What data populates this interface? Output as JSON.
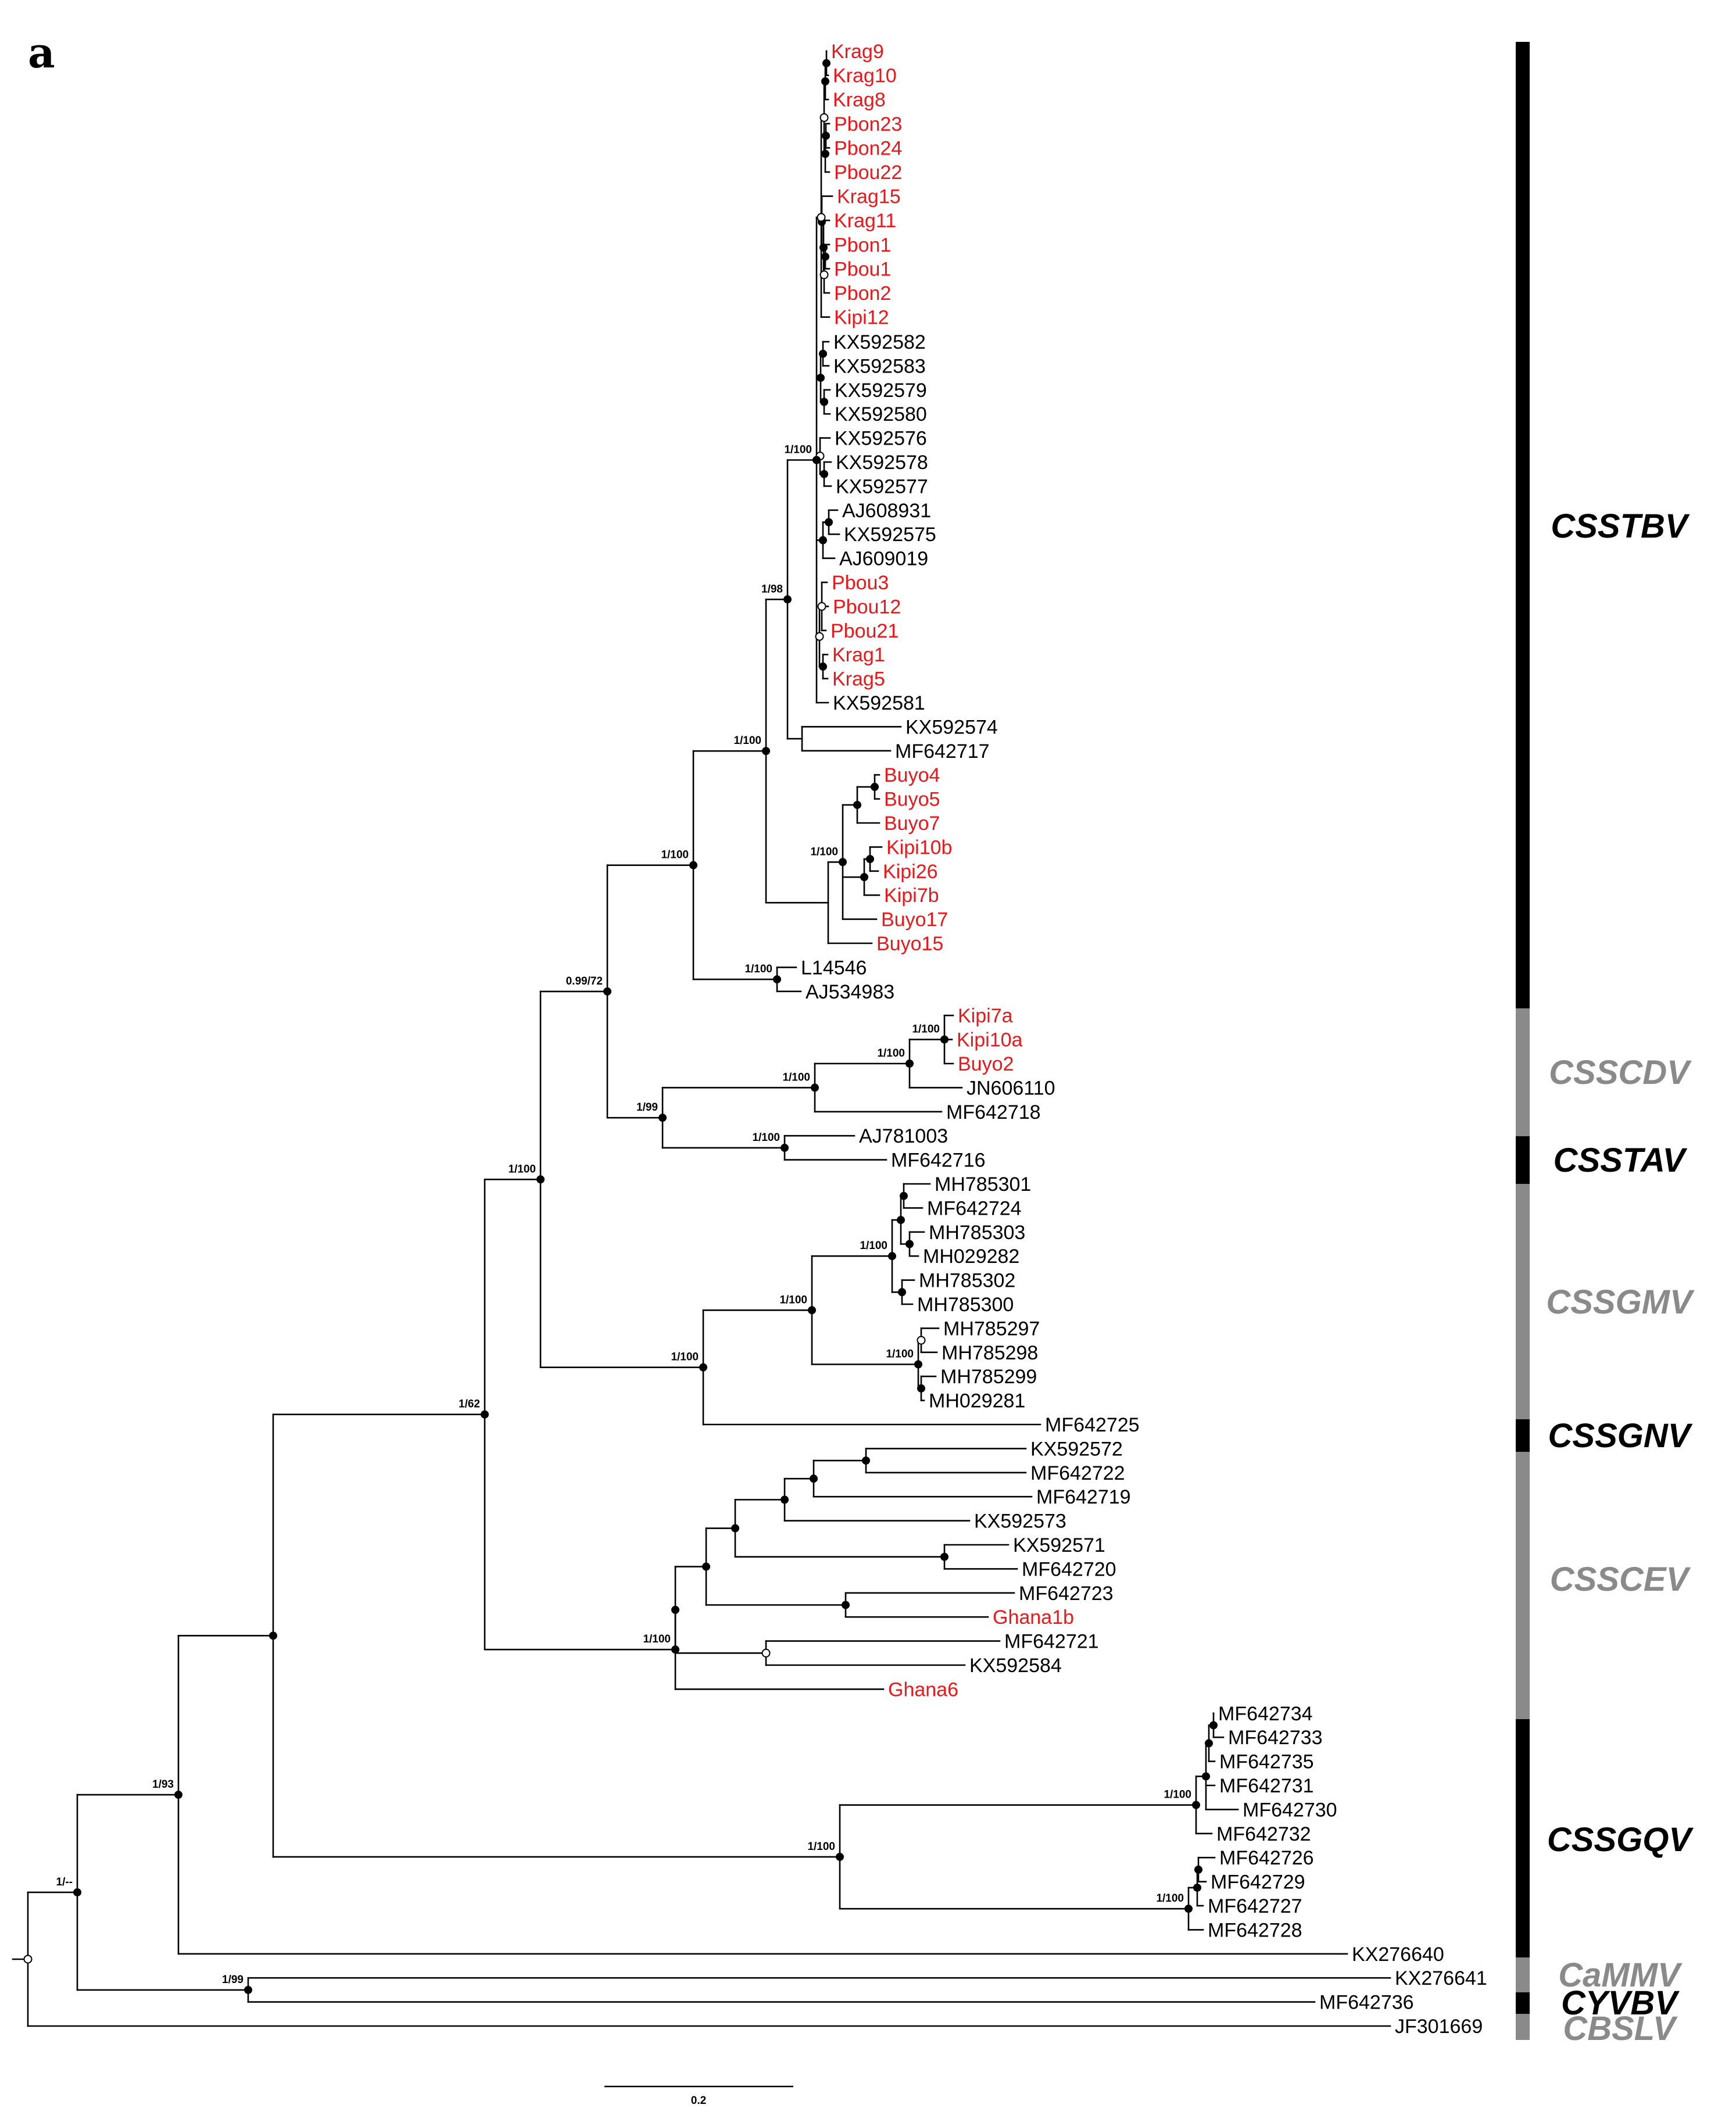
{
  "panel_label": "a",
  "colors": {
    "field_isolate": "#e8191c",
    "reference": "#000000",
    "clade_dark": "#000000",
    "clade_light": "#8a8a8a",
    "node_open": "#ffffff"
  },
  "scale_bar": {
    "label": "0.2"
  },
  "tree": {
    "rotation": "horizontal, root at left",
    "tips": [
      {
        "name": "Krag9",
        "highlight": true
      },
      {
        "name": "Krag10",
        "highlight": true
      },
      {
        "name": "Krag8",
        "highlight": true
      },
      {
        "name": "Pbon23",
        "highlight": true
      },
      {
        "name": "Pbon24",
        "highlight": true
      },
      {
        "name": "Pbou22",
        "highlight": true
      },
      {
        "name": "Krag15",
        "highlight": true
      },
      {
        "name": "Krag11",
        "highlight": true
      },
      {
        "name": "Pbon1",
        "highlight": true
      },
      {
        "name": "Pbou1",
        "highlight": true
      },
      {
        "name": "Pbon2",
        "highlight": true
      },
      {
        "name": "Kipi12",
        "highlight": true
      },
      {
        "name": "KX592582",
        "highlight": false
      },
      {
        "name": "KX592583",
        "highlight": false
      },
      {
        "name": "KX592579",
        "highlight": false
      },
      {
        "name": "KX592580",
        "highlight": false
      },
      {
        "name": "KX592576",
        "highlight": false
      },
      {
        "name": "KX592578",
        "highlight": false
      },
      {
        "name": "KX592577",
        "highlight": false
      },
      {
        "name": "AJ608931",
        "highlight": false
      },
      {
        "name": "KX592575",
        "highlight": false
      },
      {
        "name": "AJ609019",
        "highlight": false
      },
      {
        "name": "Pbou3",
        "highlight": true
      },
      {
        "name": "Pbou12",
        "highlight": true
      },
      {
        "name": "Pbou21",
        "highlight": true
      },
      {
        "name": "Krag1",
        "highlight": true
      },
      {
        "name": "Krag5",
        "highlight": true
      },
      {
        "name": "KX592581",
        "highlight": false
      },
      {
        "name": "KX592574",
        "highlight": false
      },
      {
        "name": "MF642717",
        "highlight": false
      },
      {
        "name": "Buyo4",
        "highlight": true
      },
      {
        "name": "Buyo5",
        "highlight": true
      },
      {
        "name": "Buyo7",
        "highlight": true
      },
      {
        "name": "Kipi10b",
        "highlight": true
      },
      {
        "name": "Kipi26",
        "highlight": true
      },
      {
        "name": "Kipi7b",
        "highlight": true
      },
      {
        "name": "Buyo17",
        "highlight": true
      },
      {
        "name": "Buyo15",
        "highlight": true
      },
      {
        "name": "L14546",
        "highlight": false
      },
      {
        "name": "AJ534983",
        "highlight": false
      },
      {
        "name": "Kipi7a",
        "highlight": true
      },
      {
        "name": "Kipi10a",
        "highlight": true
      },
      {
        "name": "Buyo2",
        "highlight": true
      },
      {
        "name": "JN606110",
        "highlight": false
      },
      {
        "name": "MF642718",
        "highlight": false
      },
      {
        "name": "AJ781003",
        "highlight": false
      },
      {
        "name": "MF642716",
        "highlight": false
      },
      {
        "name": "MH785301",
        "highlight": false
      },
      {
        "name": "MF642724",
        "highlight": false
      },
      {
        "name": "MH785303",
        "highlight": false
      },
      {
        "name": "MH029282",
        "highlight": false
      },
      {
        "name": "MH785302",
        "highlight": false
      },
      {
        "name": "MH785300",
        "highlight": false
      },
      {
        "name": "MH785297",
        "highlight": false
      },
      {
        "name": "MH785298",
        "highlight": false
      },
      {
        "name": "MH785299",
        "highlight": false
      },
      {
        "name": "MH029281",
        "highlight": false
      },
      {
        "name": "MF642725",
        "highlight": false
      },
      {
        "name": "KX592572",
        "highlight": false
      },
      {
        "name": "MF642722",
        "highlight": false
      },
      {
        "name": "MF642719",
        "highlight": false
      },
      {
        "name": "KX592573",
        "highlight": false
      },
      {
        "name": "KX592571",
        "highlight": false
      },
      {
        "name": "MF642720",
        "highlight": false
      },
      {
        "name": "MF642723",
        "highlight": false
      },
      {
        "name": "Ghana1b",
        "highlight": true
      },
      {
        "name": "MF642721",
        "highlight": false
      },
      {
        "name": "KX592584",
        "highlight": false
      },
      {
        "name": "Ghana6",
        "highlight": true
      },
      {
        "name": "MF642734",
        "highlight": false
      },
      {
        "name": "MF642733",
        "highlight": false
      },
      {
        "name": "MF642735",
        "highlight": false
      },
      {
        "name": "MF642731",
        "highlight": false
      },
      {
        "name": "MF642730",
        "highlight": false
      },
      {
        "name": "MF642732",
        "highlight": false
      },
      {
        "name": "MF642726",
        "highlight": false
      },
      {
        "name": "MF642729",
        "highlight": false
      },
      {
        "name": "MF642727",
        "highlight": false
      },
      {
        "name": "MF642728",
        "highlight": false
      },
      {
        "name": "KX276640",
        "highlight": false
      },
      {
        "name": "KX276641",
        "highlight": false
      },
      {
        "name": "MF642736",
        "highlight": false
      },
      {
        "name": "JF301669",
        "highlight": false
      }
    ],
    "support_labels": [
      "1/100",
      "1/98",
      "1/100",
      "1/100",
      "1/100",
      "1/100",
      "1/100",
      "1/100",
      "1/100",
      "1/99",
      "1/100",
      "0.99/72",
      "1/100",
      "1/100",
      "1/100",
      "1/100",
      "1/100",
      "1/100",
      "1/62",
      "1/100",
      "1/100",
      "1/93",
      "1/--",
      "1/99"
    ]
  },
  "clades": [
    {
      "name": "CSSTBV",
      "shade": "dark"
    },
    {
      "name": "CSSCDV",
      "shade": "light"
    },
    {
      "name": "CSSTAV",
      "shade": "dark"
    },
    {
      "name": "CSSGMV",
      "shade": "light"
    },
    {
      "name": "CSSGNV",
      "shade": "dark"
    },
    {
      "name": "CSSCEV",
      "shade": "light"
    },
    {
      "name": "CSSGQV",
      "shade": "dark"
    },
    {
      "name": "CaMMV",
      "shade": "light"
    },
    {
      "name": "CYVBV",
      "shade": "dark"
    },
    {
      "name": "CBSLV",
      "shade": "light"
    }
  ]
}
